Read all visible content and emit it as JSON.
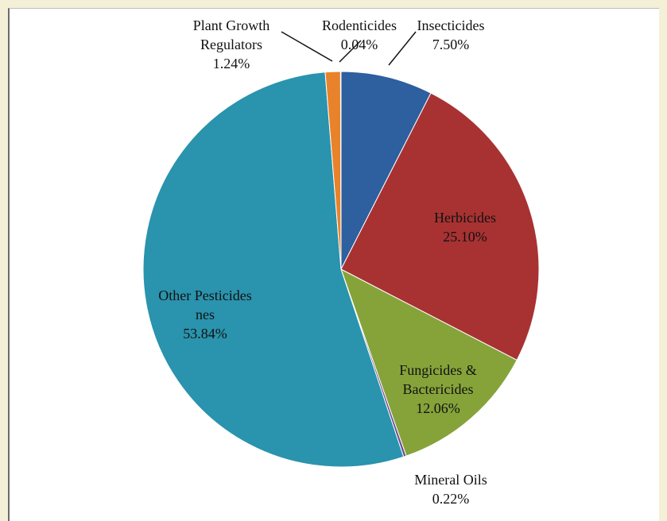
{
  "chart_data": {
    "type": "pie",
    "title": "",
    "start_angle_deg": 0,
    "direction": "clockwise",
    "slices": [
      {
        "label_lines": [
          "Insecticides"
        ],
        "value_text": "7.50%",
        "value": 7.5,
        "color": "#2e5f9e"
      },
      {
        "label_lines": [
          "Herbicides"
        ],
        "value_text": "25.10%",
        "value": 25.1,
        "color": "#a83232"
      },
      {
        "label_lines": [
          "Fungicides &",
          "Bactericides"
        ],
        "value_text": "12.06%",
        "value": 12.06,
        "color": "#86a33a"
      },
      {
        "label_lines": [
          "Mineral Oils"
        ],
        "value_text": "0.22%",
        "value": 0.22,
        "color": "#6a4c93"
      },
      {
        "label_lines": [
          "Other Pesticides",
          "nes"
        ],
        "value_text": "53.84%",
        "value": 53.84,
        "color": "#2a93ad"
      },
      {
        "label_lines": [
          "Plant Growth",
          "Regulators"
        ],
        "value_text": "1.24%",
        "value": 1.24,
        "color": "#e8832c"
      },
      {
        "label_lines": [
          "Rodenticides"
        ],
        "value_text": "0.04%",
        "value": 0.04,
        "color": "#8fa7c8"
      }
    ]
  }
}
